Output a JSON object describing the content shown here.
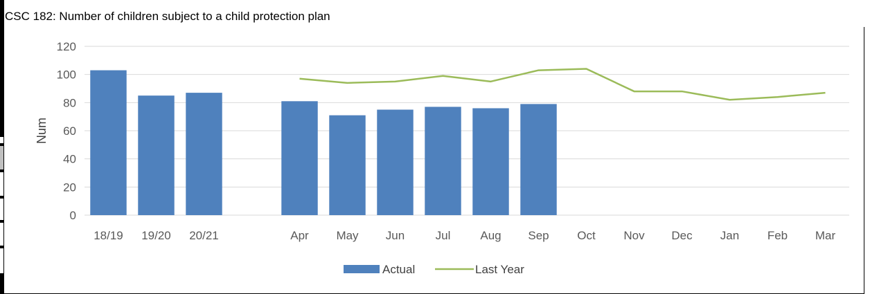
{
  "title": "CSC 182: Number of children subject to a child protection plan",
  "chart_data": {
    "type": "bar",
    "title": "CSC 182: Number of children subject to a child protection plan",
    "xlabel": "",
    "ylabel": "Num",
    "ylim": [
      0,
      120
    ],
    "yticks": [
      0,
      20,
      40,
      60,
      80,
      100,
      120
    ],
    "grid": true,
    "legend_position": "bottom",
    "categories": [
      "18/19",
      "19/20",
      "20/21",
      "",
      "Apr",
      "May",
      "Jun",
      "Jul",
      "Aug",
      "Sep",
      "Oct",
      "Nov",
      "Dec",
      "Jan",
      "Feb",
      "Mar"
    ],
    "series": [
      {
        "name": "Actual",
        "type": "bar",
        "color": "#4f81bd",
        "values": [
          103,
          85,
          87,
          null,
          81,
          71,
          75,
          77,
          76,
          79,
          null,
          null,
          null,
          null,
          null,
          null
        ]
      },
      {
        "name": "Last Year",
        "type": "line",
        "color": "#9bbb59",
        "values": [
          null,
          null,
          null,
          null,
          97,
          94,
          95,
          99,
          95,
          103,
          104,
          88,
          88,
          82,
          84,
          87
        ]
      }
    ]
  }
}
